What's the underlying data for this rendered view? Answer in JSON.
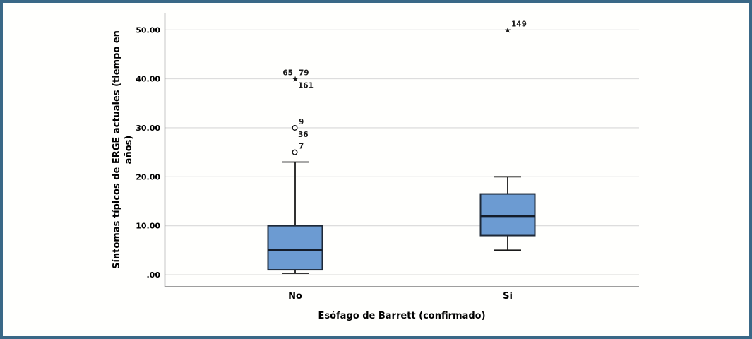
{
  "frame": {
    "border_color": "#3a6887",
    "background": "#ffffff"
  },
  "chart_data": {
    "type": "boxplot",
    "title": "",
    "xlabel": "Esófago de Barrett (confirmado)",
    "ylabel": "Síntomas típicos de ERGE actuales (tiempo en años)",
    "ylabel_lines": [
      "Síntomas típicos de ERGE actuales (tiempo en",
      "años)"
    ],
    "categories": [
      "No",
      "Si"
    ],
    "yticks": [
      {
        "label": ".00",
        "value": 0
      },
      {
        "label": "10.00",
        "value": 10
      },
      {
        "label": "20.00",
        "value": 20
      },
      {
        "label": "30.00",
        "value": 30
      },
      {
        "label": "40.00",
        "value": 40
      },
      {
        "label": "50.00",
        "value": 50
      }
    ],
    "ylim": [
      -2.45,
      53.5
    ],
    "grid": true,
    "legend": false,
    "series": [
      {
        "category": "No",
        "whisker_low": 0.3,
        "q1": 1,
        "median": 5,
        "q3": 10,
        "whisker_high": 23,
        "outliers": [
          {
            "marker": "circle",
            "value": 25,
            "labels": [
              {
                "text": "7",
                "pos": "above-right"
              }
            ]
          },
          {
            "marker": "circle",
            "value": 30,
            "labels": [
              {
                "text": "9",
                "pos": "above-right"
              },
              {
                "text": "36",
                "pos": "below-right"
              }
            ]
          },
          {
            "marker": "star",
            "value": 40,
            "labels": [
              {
                "text": "65",
                "pos": "above-left"
              },
              {
                "text": "79",
                "pos": "above-right"
              },
              {
                "text": "161",
                "pos": "below-right"
              }
            ]
          }
        ]
      },
      {
        "category": "Si",
        "whisker_low": 5,
        "q1": 8,
        "median": 12,
        "q3": 16.5,
        "whisker_high": 20,
        "outliers": [
          {
            "marker": "star",
            "value": 50,
            "labels": [
              {
                "text": "149",
                "pos": "above-right"
              }
            ]
          }
        ]
      }
    ],
    "colors": {
      "box_fill": "#6c9bd2",
      "box_border": "#1e2938",
      "median": "#141d2b",
      "whisker": "#1a1a1a",
      "gridline": "#d8d8d8",
      "y_axis": "#909090",
      "x_axis": "#9e9e9e",
      "text": "#000000"
    }
  }
}
